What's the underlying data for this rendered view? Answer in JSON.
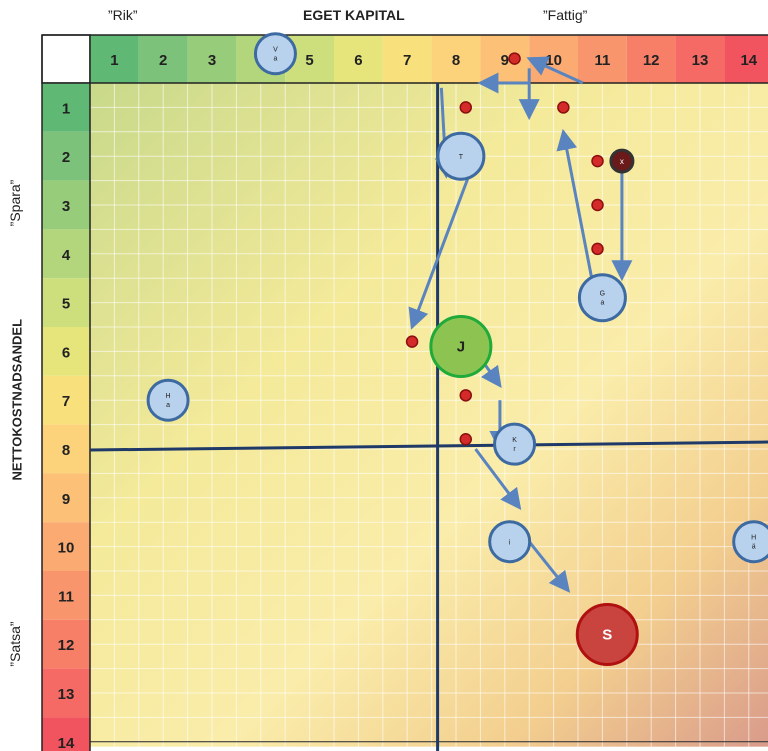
{
  "header": {
    "left_quote": "”Rik”",
    "title": "EGET KAPITAL",
    "right_quote": "”Fattig”"
  },
  "side": {
    "top_quote": "”Spara”",
    "axis_title": "NETTOKOSTNADSANDEL",
    "bottom_quote": "”Satsa”"
  },
  "columns": [
    "1",
    "2",
    "3",
    "4",
    "5",
    "6",
    "7",
    "8",
    "9",
    "10",
    "11",
    "12",
    "13",
    "14"
  ],
  "rows": [
    "1",
    "2",
    "3",
    "4",
    "5",
    "6",
    "7",
    "8",
    "9",
    "10",
    "11",
    "12",
    "13",
    "14"
  ],
  "scale_colors": [
    "#5fb873",
    "#7cc27a",
    "#97cc7b",
    "#b3d67c",
    "#cddf7d",
    "#e6e57c",
    "#f8e07c",
    "#fcd27a",
    "#fcc177",
    "#fbab72",
    "#f9956d",
    "#f77f68",
    "#f56a64",
    "#f2545f"
  ],
  "bubbles": [
    {
      "id": "va",
      "label": "V\na",
      "col": 4.3,
      "row": -0.1,
      "fill": "#b8d2ee",
      "stroke": "#3d6aa0",
      "size": "s"
    },
    {
      "id": "t",
      "label": "T",
      "col": 8.1,
      "row": 2.0,
      "fill": "#b8d2ee",
      "stroke": "#3d6aa0",
      "size": "m"
    },
    {
      "id": "ga",
      "label": "G\na",
      "col": 11.0,
      "row": 4.9,
      "fill": "#b8d2ee",
      "stroke": "#3d6aa0",
      "size": "m"
    },
    {
      "id": "j",
      "label": "J",
      "col": 8.1,
      "row": 5.9,
      "fill": "#8dc451",
      "stroke": "#1faa3a",
      "size": "l"
    },
    {
      "id": "ha",
      "label": "H\na",
      "col": 2.1,
      "row": 7.0,
      "fill": "#b8d2ee",
      "stroke": "#3d6aa0",
      "size": "s"
    },
    {
      "id": "kr",
      "label": "K\nr",
      "col": 9.2,
      "row": 7.9,
      "fill": "#b8d2ee",
      "stroke": "#3d6aa0",
      "size": "s"
    },
    {
      "id": "i",
      "label": "i",
      "col": 9.1,
      "row": 9.9,
      "fill": "#b8d2ee",
      "stroke": "#3d6aa0",
      "size": "s"
    },
    {
      "id": "ha2",
      "label": "H\nä",
      "col": 14.1,
      "row": 9.9,
      "fill": "#b8d2ee",
      "stroke": "#3d6aa0",
      "size": "s"
    },
    {
      "id": "s",
      "label": "S",
      "col": 11.1,
      "row": 11.8,
      "fill": "#c9443f",
      "stroke": "#b01010",
      "size": "l"
    },
    {
      "id": "x",
      "label": "x",
      "col": 11.4,
      "row": 2.1,
      "fill": "#6b1a1a",
      "stroke": "#333333",
      "size": "xs"
    }
  ],
  "dots": [
    [
      9.2,
      0.0
    ],
    [
      8.2,
      1.0
    ],
    [
      10.2,
      1.0
    ],
    [
      8.2,
      2.1
    ],
    [
      10.9,
      2.1
    ],
    [
      10.9,
      3.0
    ],
    [
      10.9,
      3.9
    ],
    [
      7.1,
      5.8
    ],
    [
      8.2,
      6.9
    ],
    [
      8.2,
      7.8
    ],
    [
      9.2,
      9.7
    ]
  ],
  "arrows": [
    [
      [
        10.6,
        0.5
      ],
      [
        9.5,
        0.0
      ]
    ],
    [
      [
        9.5,
        0.5
      ],
      [
        8.5,
        0.5
      ]
    ],
    [
      [
        9.5,
        0.2
      ],
      [
        9.5,
        1.2
      ]
    ],
    [
      [
        7.7,
        0.6
      ],
      [
        7.8,
        2.4
      ]
    ],
    [
      [
        8.3,
        2.3
      ],
      [
        7.1,
        5.5
      ]
    ],
    [
      [
        10.8,
        4.6
      ],
      [
        10.2,
        1.5
      ]
    ],
    [
      [
        11.4,
        2.2
      ],
      [
        11.4,
        4.5
      ]
    ],
    [
      [
        8.4,
        6.0
      ],
      [
        8.9,
        6.7
      ]
    ],
    [
      [
        8.9,
        7.0
      ],
      [
        8.9,
        8.0
      ]
    ],
    [
      [
        8.4,
        8.0
      ],
      [
        9.3,
        9.2
      ]
    ],
    [
      [
        9.5,
        9.9
      ],
      [
        10.3,
        10.9
      ]
    ]
  ],
  "quadrant_lines": {
    "v_col": 7.0,
    "h_row": 7.5
  }
}
